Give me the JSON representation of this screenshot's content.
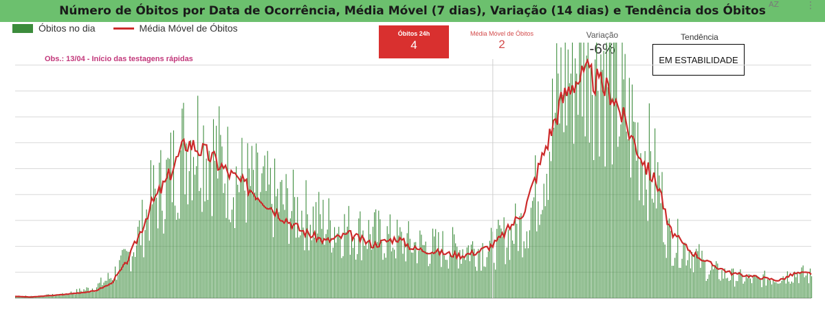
{
  "title": "Número de Óbitos por Data de Ocorrência, Média Móvel (7 dias), Variação (14 dias) e Tendência dos Óbitos",
  "icons": {
    "sort": "sort-az-icon",
    "menu": "more-vert-icon"
  },
  "sort_label": "AZ",
  "menu_glyph": "⋮",
  "legend": {
    "bars": "Óbitos no dia",
    "line": "Média Móvel de Óbitos"
  },
  "note": "Obs.: 13/04 - Início das testagens rápidas",
  "kpis": {
    "obitos_24h_label": "Óbitos 24h",
    "obitos_24h_value": "4",
    "media_movel_label": "Média Móvel de Óbitos",
    "media_movel_value": "2",
    "variacao_label": "Variação",
    "variacao_value": "-6%",
    "tendencia_label": "Tendência",
    "tendencia_value": "EM ESTABILIDADE"
  },
  "colors": {
    "bars": "#3c8c3c",
    "line": "#cc2a2a",
    "header": "#6cc06e",
    "kpi_red": "#d9302f",
    "note": "#c2377a"
  },
  "chart_data": {
    "type": "bar",
    "series": [
      {
        "name": "Óbitos no dia",
        "kind": "bar",
        "envelope": [
          [
            0,
            0.6
          ],
          [
            0.02,
            0.5
          ],
          [
            0.06,
            1
          ],
          [
            0.1,
            3
          ],
          [
            0.12,
            6
          ],
          [
            0.14,
            11
          ],
          [
            0.16,
            20
          ],
          [
            0.17,
            27
          ],
          [
            0.19,
            33
          ],
          [
            0.205,
            39
          ],
          [
            0.215,
            44
          ],
          [
            0.225,
            46
          ],
          [
            0.245,
            42
          ],
          [
            0.27,
            35
          ],
          [
            0.3,
            31
          ],
          [
            0.33,
            27
          ],
          [
            0.36,
            24
          ],
          [
            0.39,
            21
          ],
          [
            0.42,
            19
          ],
          [
            0.45,
            18
          ],
          [
            0.48,
            16
          ],
          [
            0.5,
            15
          ],
          [
            0.53,
            14
          ],
          [
            0.56,
            14
          ],
          [
            0.58,
            14
          ],
          [
            0.6,
            14
          ],
          [
            0.61,
            16
          ],
          [
            0.64,
            21
          ],
          [
            0.655,
            30
          ],
          [
            0.67,
            44
          ],
          [
            0.685,
            58
          ],
          [
            0.7,
            67
          ],
          [
            0.72,
            72
          ],
          [
            0.735,
            69
          ],
          [
            0.75,
            60
          ],
          [
            0.765,
            52
          ],
          [
            0.78,
            45
          ],
          [
            0.795,
            39
          ],
          [
            0.81,
            30
          ],
          [
            0.82,
            17
          ],
          [
            0.835,
            15
          ],
          [
            0.85,
            13
          ],
          [
            0.87,
            8
          ],
          [
            0.9,
            6
          ],
          [
            0.93,
            5
          ],
          [
            0.96,
            6
          ],
          [
            0.98,
            7
          ],
          [
            1,
            6
          ]
        ]
      },
      {
        "name": "Média Móvel de Óbitos",
        "kind": "line",
        "envelope": [
          [
            0,
            0.5
          ],
          [
            0.02,
            0.3
          ],
          [
            0.06,
            1
          ],
          [
            0.1,
            2
          ],
          [
            0.12,
            4
          ],
          [
            0.14,
            10
          ],
          [
            0.16,
            20
          ],
          [
            0.17,
            26
          ],
          [
            0.19,
            33
          ],
          [
            0.205,
            40
          ],
          [
            0.215,
            44
          ],
          [
            0.225,
            43
          ],
          [
            0.245,
            40
          ],
          [
            0.27,
            35
          ],
          [
            0.3,
            30
          ],
          [
            0.33,
            24
          ],
          [
            0.36,
            19
          ],
          [
            0.39,
            16
          ],
          [
            0.42,
            18
          ],
          [
            0.45,
            15
          ],
          [
            0.48,
            17
          ],
          [
            0.5,
            14
          ],
          [
            0.53,
            13
          ],
          [
            0.56,
            12
          ],
          [
            0.58,
            13
          ],
          [
            0.6,
            15
          ],
          [
            0.61,
            17
          ],
          [
            0.64,
            25
          ],
          [
            0.655,
            35
          ],
          [
            0.67,
            45
          ],
          [
            0.685,
            55
          ],
          [
            0.7,
            61
          ],
          [
            0.72,
            63
          ],
          [
            0.735,
            60
          ],
          [
            0.75,
            58
          ],
          [
            0.765,
            50
          ],
          [
            0.78,
            43
          ],
          [
            0.795,
            36
          ],
          [
            0.81,
            31
          ],
          [
            0.82,
            20
          ],
          [
            0.835,
            16
          ],
          [
            0.85,
            13
          ],
          [
            0.87,
            10
          ],
          [
            0.9,
            7
          ],
          [
            0.93,
            6
          ],
          [
            0.96,
            5
          ],
          [
            0.98,
            7
          ],
          [
            1,
            7
          ]
        ]
      }
    ],
    "ylim": [
      0,
      72
    ],
    "highlight_date_index": 0.6,
    "grid": true,
    "legend_position": "top-left"
  }
}
